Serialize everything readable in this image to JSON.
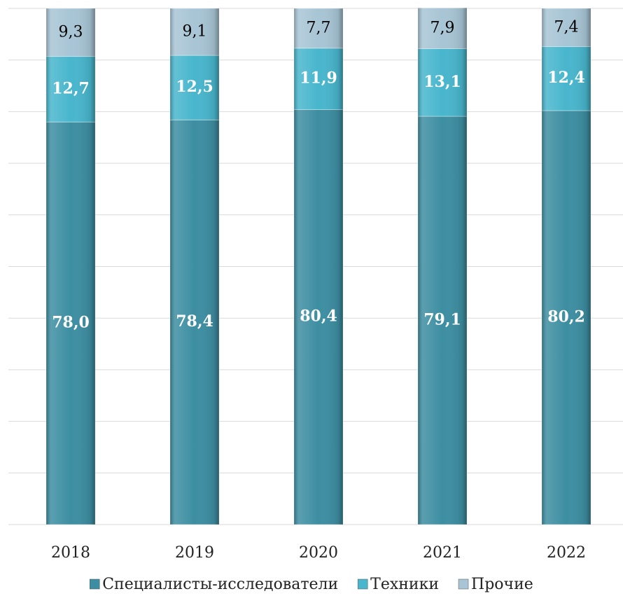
{
  "chart_data": {
    "type": "bar",
    "stacked": true,
    "categories": [
      "2018",
      "2019",
      "2020",
      "2021",
      "2022"
    ],
    "series": [
      {
        "name": "Специалисты-исследователи",
        "color": "#3d8ea2",
        "values": [
          78.0,
          78.4,
          80.4,
          79.1,
          80.2
        ],
        "value_labels": [
          "78,0",
          "78,4",
          "80,4",
          "79,1",
          "80,2"
        ]
      },
      {
        "name": "Техники",
        "color": "#48b6cd",
        "values": [
          12.7,
          12.5,
          11.9,
          13.1,
          12.4
        ],
        "value_labels": [
          "12,7",
          "12,5",
          "11,9",
          "13,1",
          "12,4"
        ]
      },
      {
        "name": "Прочие",
        "color": "#a8c5d5",
        "values": [
          9.3,
          9.1,
          7.7,
          7.9,
          7.4
        ],
        "value_labels": [
          "9,3",
          "9,1",
          "7,7",
          "7,9",
          "7,4"
        ]
      }
    ],
    "ylim": [
      0,
      100
    ],
    "yticks": [
      0,
      10,
      20,
      30,
      40,
      50,
      60,
      70,
      80,
      90,
      100
    ],
    "grid": true,
    "legend": "bottom"
  }
}
